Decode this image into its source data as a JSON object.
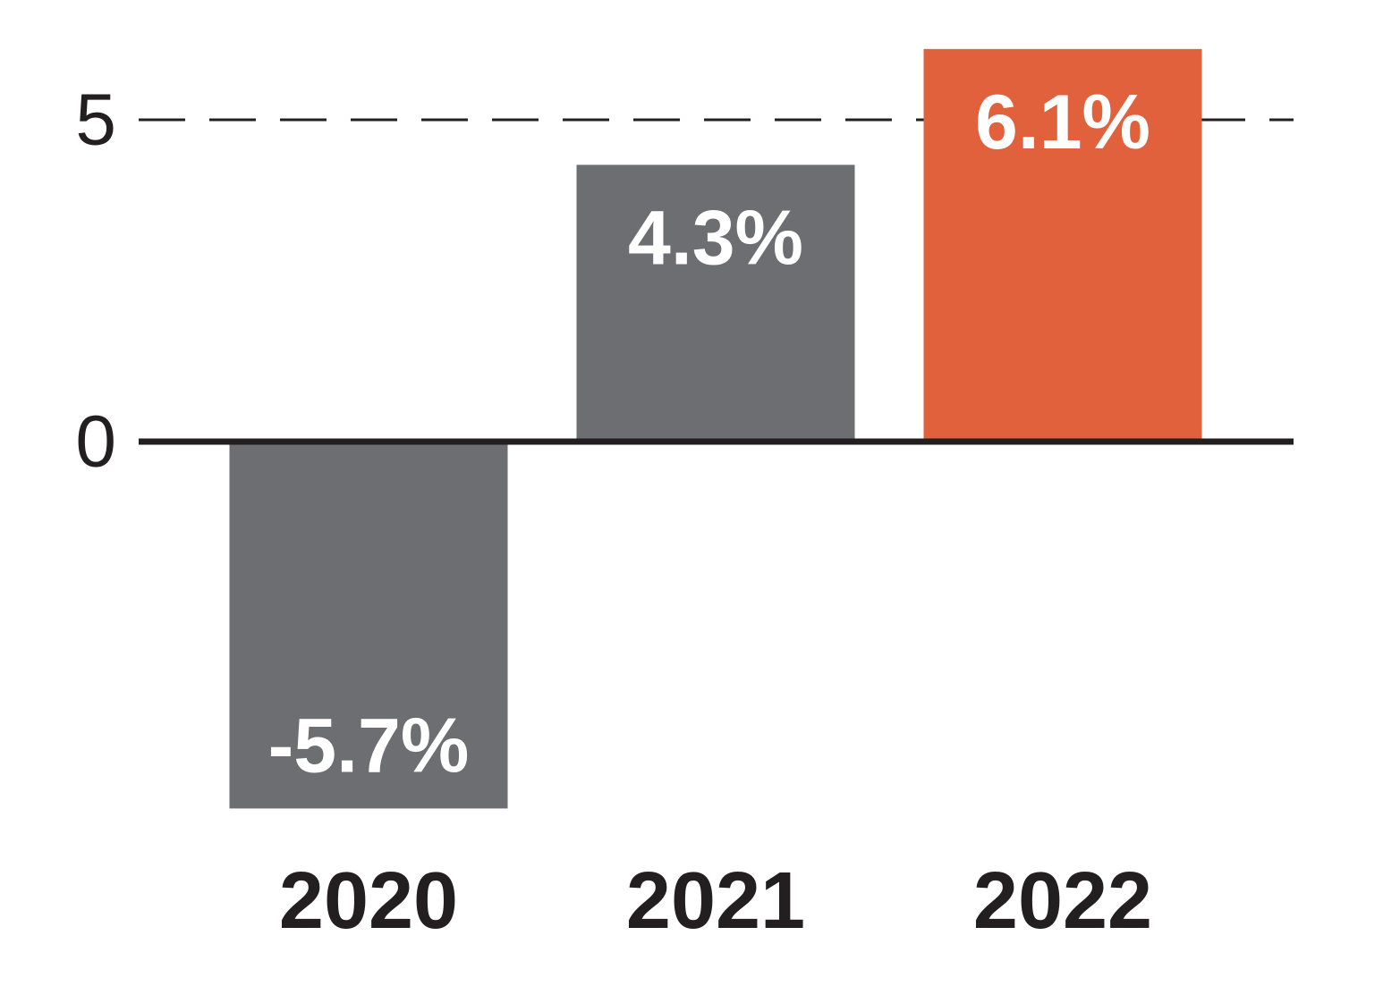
{
  "chart_data": {
    "type": "bar",
    "categories": [
      "2020",
      "2021",
      "2022"
    ],
    "values": [
      -5.7,
      4.3,
      6.1
    ],
    "data_labels": [
      "-5.7%",
      "4.3%",
      "6.1%"
    ],
    "yticks": [
      {
        "value": 0,
        "label": "0"
      },
      {
        "value": 5,
        "label": "5"
      }
    ],
    "ylim": [
      -5.7,
      6.1
    ],
    "reference_line": {
      "value": 5,
      "style": "dashed"
    },
    "bar_colors": [
      "#6d6e71",
      "#6d6e71",
      "#e0613b"
    ],
    "axis_color": "#231f20",
    "title": "",
    "xlabel": "",
    "ylabel": ""
  }
}
